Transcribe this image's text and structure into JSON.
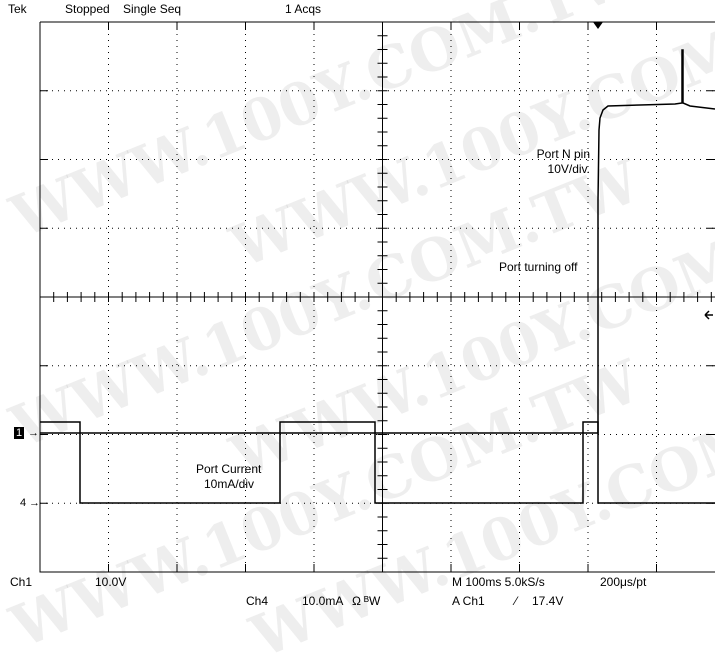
{
  "status": {
    "brand": "Tek",
    "state": "Stopped",
    "mode": "Single Seq",
    "acqs": "1 Acqs"
  },
  "annotations": {
    "port_n_line1": "Port N pin",
    "port_n_line2": "10V/div.",
    "port_off": "Port turning off",
    "current_line1": "Port Current",
    "current_line2": "10mA/div"
  },
  "markers": {
    "ch1": "1",
    "ch4": "4"
  },
  "footer": {
    "ch1_label": "Ch1",
    "ch1_scale": "10.0V",
    "ch4_label": "Ch4",
    "ch4_scale": "10.0mA",
    "ohm": "Ω",
    "bw": "ᴮW",
    "time": "M 100ms 5.0kS/s",
    "sample": "200μs/pt",
    "trig_source": "A  Ch1",
    "trig_slope": "⁄",
    "trig_level": "17.4V"
  },
  "watermark": "WWW.100Y.COM.TW",
  "colors": {
    "trace": "#000000",
    "grid": "#000000",
    "background": "#ffffff"
  }
}
